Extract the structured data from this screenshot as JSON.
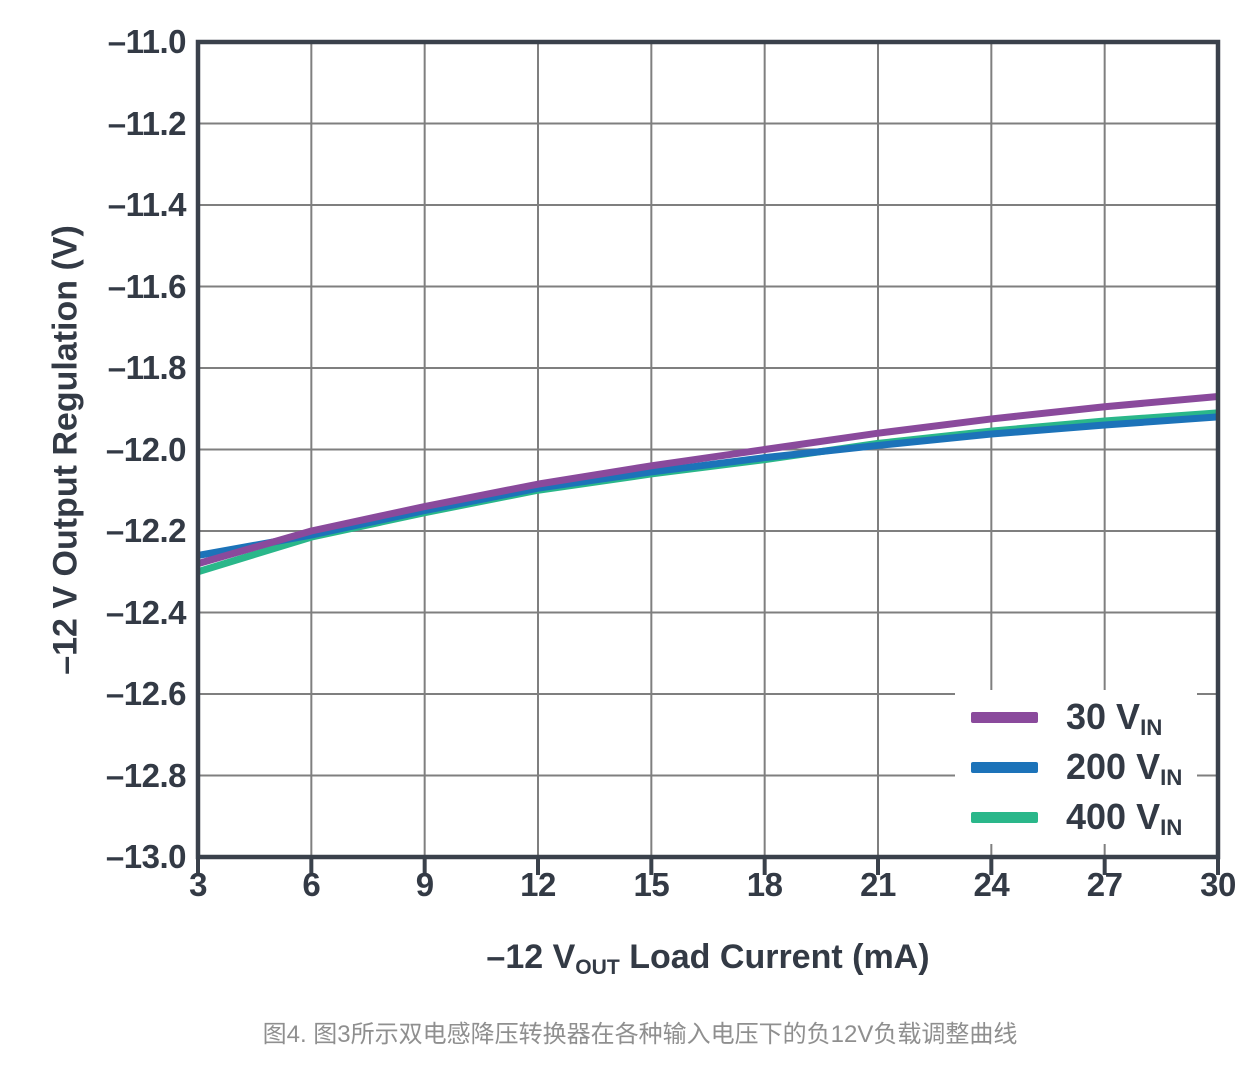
{
  "chart_data": {
    "type": "line",
    "title": "",
    "ylabel": "–12 V Output Regulation (V)",
    "xlabel_parts": {
      "pre": "–12 V",
      "sub": "OUT",
      "post": " Load Current (mA)"
    },
    "xlim": [
      3,
      30
    ],
    "ylim": [
      -13.0,
      -11.0
    ],
    "grid": true,
    "legend_position": "lower right",
    "x_ticks": [
      3,
      6,
      9,
      12,
      15,
      18,
      21,
      24,
      27,
      30
    ],
    "x_tick_labels": [
      "3",
      "6",
      "9",
      "12",
      "15",
      "18",
      "21",
      "24",
      "27",
      "30"
    ],
    "y_ticks": [
      -11.0,
      -11.2,
      -11.4,
      -11.6,
      -11.8,
      -12.0,
      -12.2,
      -12.4,
      -12.6,
      -12.8,
      -13.0
    ],
    "y_tick_labels": [
      "–11.0",
      "–11.2",
      "–11.4",
      "–11.6",
      "–11.8",
      "–12.0",
      "–12.2",
      "–12.4",
      "–12.6",
      "–12.8",
      "–13.0"
    ],
    "x": [
      3,
      6,
      9,
      12,
      15,
      18,
      21,
      24,
      27,
      30
    ],
    "series": [
      {
        "name": "30 V",
        "subscript": "IN",
        "color": "#8a4a9c",
        "values": [
          -12.28,
          -12.2,
          -12.14,
          -12.085,
          -12.04,
          -12.0,
          -11.96,
          -11.925,
          -11.895,
          -11.87
        ]
      },
      {
        "name": "200 V",
        "subscript": "IN",
        "color": "#1c73b9",
        "values": [
          -12.26,
          -12.21,
          -12.15,
          -12.095,
          -12.055,
          -12.02,
          -11.99,
          -11.962,
          -11.94,
          -11.92
        ]
      },
      {
        "name": "400 V",
        "subscript": "IN",
        "color": "#2ab78a",
        "values": [
          -12.3,
          -12.215,
          -12.155,
          -12.1,
          -12.06,
          -12.025,
          -11.985,
          -11.955,
          -11.93,
          -11.91
        ]
      }
    ]
  },
  "caption": "图4. 图3所示双电感降压转换器在各种输入电压下的负12V负载调整曲线",
  "colors": {
    "background": "#ffffff",
    "grid": "#7f7f7f",
    "frame": "#3a414b",
    "text": "#333a45",
    "caption_text": "#8f8f8f",
    "legend_background": "#ffffff"
  }
}
